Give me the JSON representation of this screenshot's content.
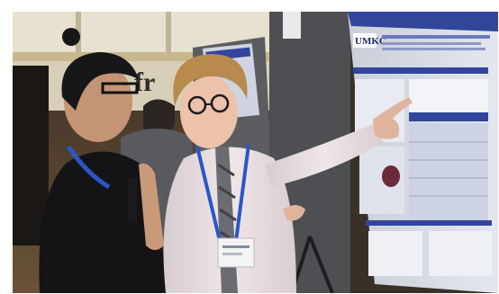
{
  "image": {
    "kind": "photograph",
    "depicts": [
      "poster-session",
      "presenter",
      "visitor",
      "research-poster",
      "display-board"
    ],
    "colors": {
      "frame": "#ffffff",
      "ceiling": "#e7e1cf",
      "poster_blue": "#31469a",
      "lanyard_blue": "#2b56c7",
      "board_gray": "#56585b",
      "hair_blond": "#b88a4e",
      "hair_black": "#17171a"
    }
  },
  "poster": {
    "logo_text": "UMKC"
  },
  "background_banner": {
    "text": "fr"
  }
}
